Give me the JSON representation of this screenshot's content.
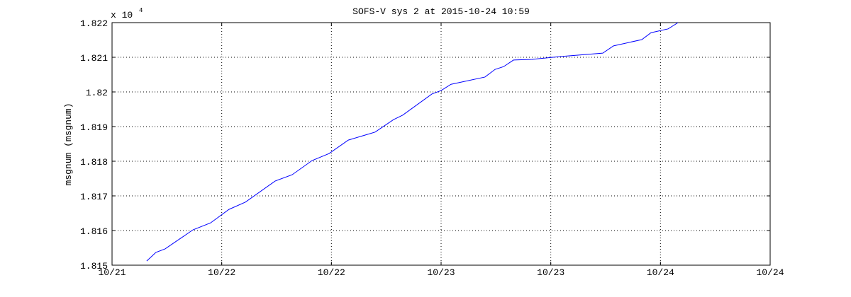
{
  "chart_data": {
    "type": "line",
    "title": "SOFS-V sys 2 at 2015-10-24 10:59",
    "y_label": "msgnum (msgnum)",
    "y_multiplier": {
      "base": "x 10",
      "exponent": "4"
    },
    "x": [
      21.658,
      21.7,
      21.742,
      21.869,
      21.949,
      22.033,
      22.108,
      22.244,
      22.321,
      22.412,
      22.489,
      22.577,
      22.699,
      22.783,
      22.825,
      22.958,
      23.0,
      23.045,
      23.2,
      23.246,
      23.285,
      23.33,
      23.414,
      23.543,
      23.737,
      23.786,
      23.915,
      23.957,
      24.035,
      24.08
    ],
    "series": [
      {
        "name": "msgnum",
        "color": "#0000ff",
        "values": [
          1.81512,
          1.81537,
          1.81547,
          1.81602,
          1.81622,
          1.81661,
          1.81682,
          1.81743,
          1.81761,
          1.81802,
          1.81822,
          1.81861,
          1.81884,
          1.8192,
          1.81933,
          1.81994,
          1.82004,
          1.82022,
          1.82043,
          1.82065,
          1.82073,
          1.82092,
          1.82094,
          1.82102,
          1.82112,
          1.82133,
          1.82151,
          1.82171,
          1.82182,
          1.822
        ]
      }
    ],
    "xlim": [
      21.5,
      24.5
    ],
    "xticks": [
      {
        "value": 21.5,
        "label": "10/21"
      },
      {
        "value": 22,
        "label": "10/22"
      },
      {
        "value": 22.5,
        "label": "10/22"
      },
      {
        "value": 23,
        "label": "10/23"
      },
      {
        "value": 23.5,
        "label": "10/23"
      },
      {
        "value": 24,
        "label": "10/24"
      },
      {
        "value": 24.5,
        "label": "10/24"
      }
    ],
    "ylim": [
      1.815,
      1.822
    ],
    "yticks": [
      1.815,
      1.816,
      1.817,
      1.818,
      1.819,
      1.82,
      1.821,
      1.822
    ],
    "grid": true
  }
}
